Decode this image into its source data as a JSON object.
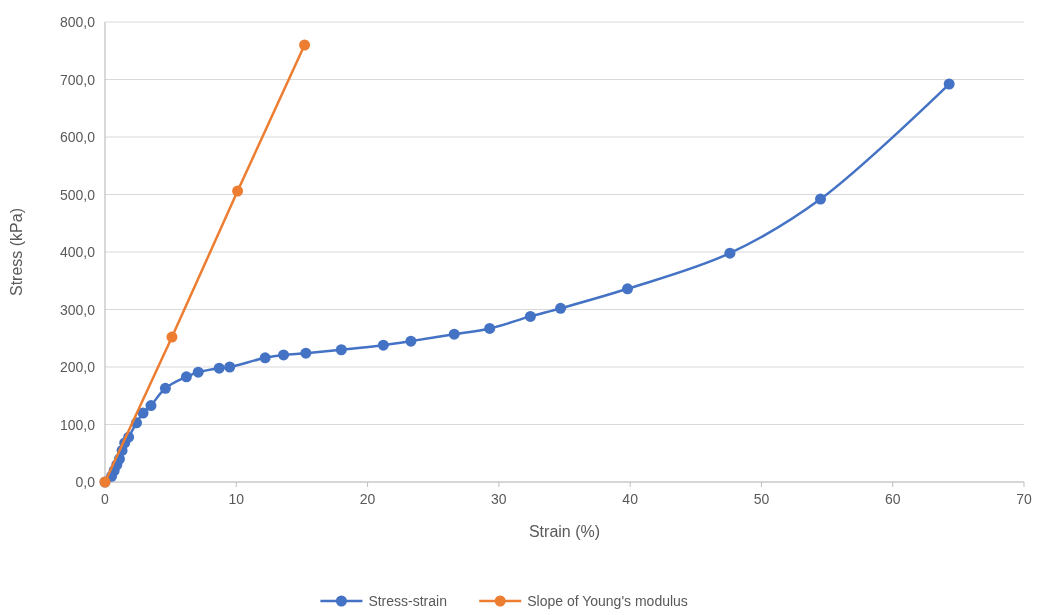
{
  "chart_data": {
    "type": "line",
    "xlabel": "Strain (%)",
    "ylabel": "Stress (kPa)",
    "xlim": [
      0,
      70
    ],
    "xticks": [
      0,
      10,
      20,
      30,
      40,
      50,
      60,
      70
    ],
    "ylim": [
      0,
      800
    ],
    "yticks": [
      {
        "value": 0,
        "label": "0,0"
      },
      {
        "value": 100,
        "label": "100,0"
      },
      {
        "value": 200,
        "label": "200,0"
      },
      {
        "value": 300,
        "label": "300,0"
      },
      {
        "value": 400,
        "label": "400,0"
      },
      {
        "value": 500,
        "label": "500,0"
      },
      {
        "value": 600,
        "label": "600,0"
      },
      {
        "value": 700,
        "label": "700,0"
      },
      {
        "value": 800,
        "label": "800,0"
      }
    ],
    "grid": "y",
    "legend": "bottom",
    "marker": "circle",
    "series": [
      {
        "name": "Stress-strain",
        "color": "#4472c4",
        "x": [
          0,
          0.5,
          0.7,
          0.9,
          1.1,
          1.3,
          1.5,
          1.8,
          2.4,
          2.9,
          3.5,
          4.6,
          6.2,
          7.1,
          8.7,
          9.5,
          12.2,
          13.6,
          15.3,
          18.0,
          21.2,
          23.3,
          26.6,
          29.3,
          32.4,
          34.7,
          39.8,
          47.6,
          54.5,
          64.3
        ],
        "values": [
          0,
          10,
          20,
          30,
          40,
          55,
          68,
          78,
          103,
          120,
          133,
          163,
          183,
          191,
          198,
          200,
          216,
          221,
          224,
          230,
          238,
          245,
          257,
          267,
          288,
          302,
          336,
          398,
          492,
          692
        ]
      },
      {
        "name": "Slope of Young's modulus",
        "color": "#ed7d31",
        "x": [
          0,
          5.1,
          10.1,
          15.2
        ],
        "values": [
          0,
          252,
          506,
          760
        ]
      }
    ]
  }
}
